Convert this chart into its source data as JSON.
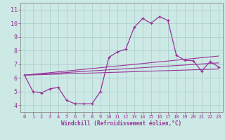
{
  "xlabel": "Windchill (Refroidissement éolien,°C)",
  "background_color": "#cce9e5",
  "line_color": "#993399",
  "grid_color": "#aacccc",
  "xlim": [
    -0.5,
    23.5
  ],
  "ylim": [
    3.5,
    11.5
  ],
  "yticks": [
    4,
    5,
    6,
    7,
    8,
    9,
    10,
    11
  ],
  "xticks": [
    0,
    1,
    2,
    3,
    4,
    5,
    6,
    7,
    8,
    9,
    10,
    11,
    12,
    13,
    14,
    15,
    16,
    17,
    18,
    19,
    20,
    21,
    22,
    23
  ],
  "series1_x": [
    0,
    1,
    2,
    3,
    4,
    5,
    6,
    7,
    8,
    9,
    10,
    11,
    12,
    13,
    14,
    15,
    16,
    17,
    18,
    19,
    20,
    21,
    22,
    23
  ],
  "series1_y": [
    6.2,
    5.0,
    4.9,
    5.2,
    5.3,
    4.35,
    4.1,
    4.1,
    4.1,
    5.0,
    7.5,
    7.9,
    8.1,
    9.7,
    10.35,
    10.0,
    10.5,
    10.2,
    7.65,
    7.3,
    7.25,
    6.5,
    7.2,
    6.8
  ],
  "series2_x": [
    0,
    23
  ],
  "series2_y": [
    6.2,
    7.6
  ],
  "series3_x": [
    0,
    23
  ],
  "series3_y": [
    6.2,
    7.1
  ],
  "series4_x": [
    0,
    23
  ],
  "series4_y": [
    6.2,
    6.65
  ]
}
